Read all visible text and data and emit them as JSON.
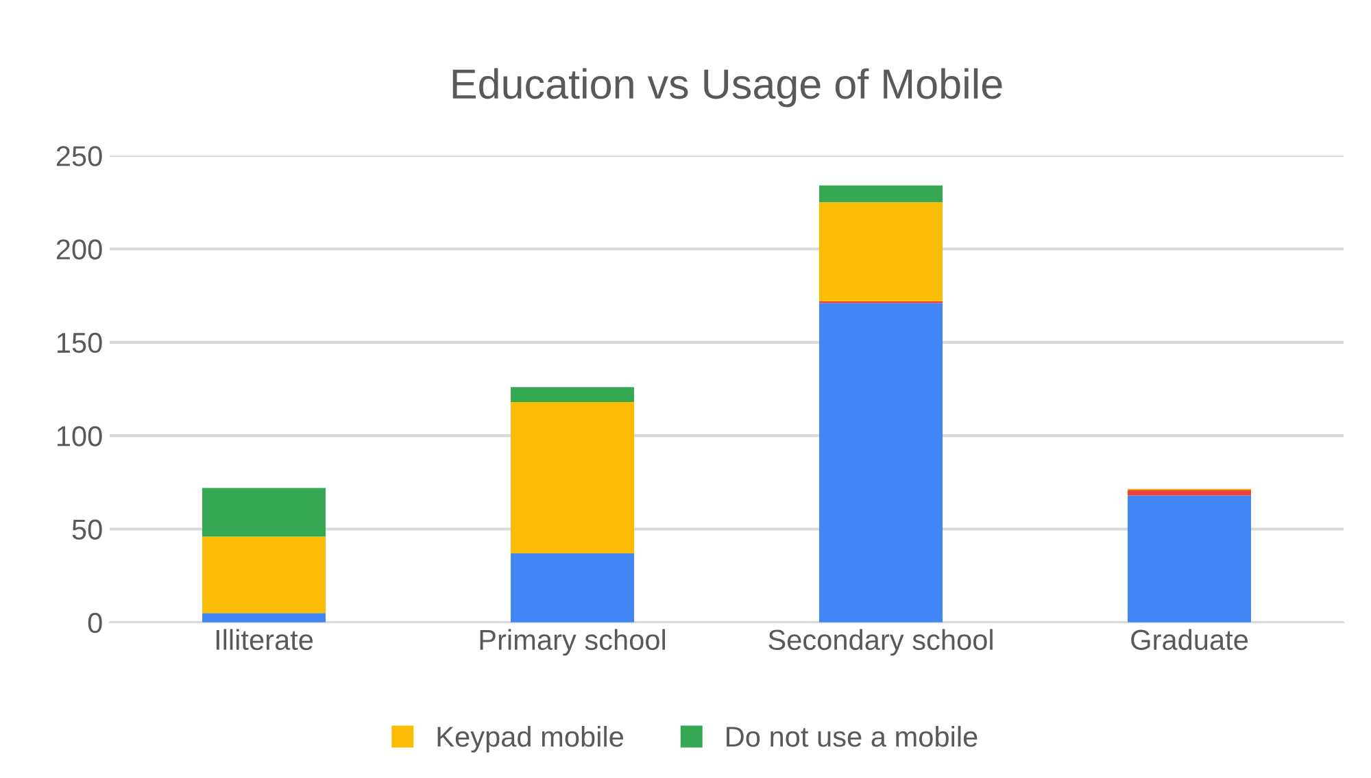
{
  "chart_data": {
    "type": "bar",
    "title": "Education vs Usage of Mobile",
    "stacked": true,
    "categories": [
      "Illiterate",
      "Primary school",
      "Secondary school",
      "Graduate"
    ],
    "series": [
      {
        "color": "#4285f4",
        "values": [
          5,
          37,
          171,
          68
        ]
      },
      {
        "color": "#ea4335",
        "values": [
          0,
          0,
          1,
          3
        ]
      },
      {
        "name": "Keypad mobile",
        "color": "#fbbc04",
        "values": [
          41,
          81,
          53,
          0.5
        ]
      },
      {
        "name": "Do not use a mobile",
        "color": "#34a853",
        "values": [
          26,
          8,
          9,
          0
        ]
      }
    ],
    "ylim": [
      0,
      250
    ],
    "yticks": [
      0,
      50,
      100,
      150,
      200,
      250
    ],
    "grid": "y",
    "legend": "bottom"
  }
}
